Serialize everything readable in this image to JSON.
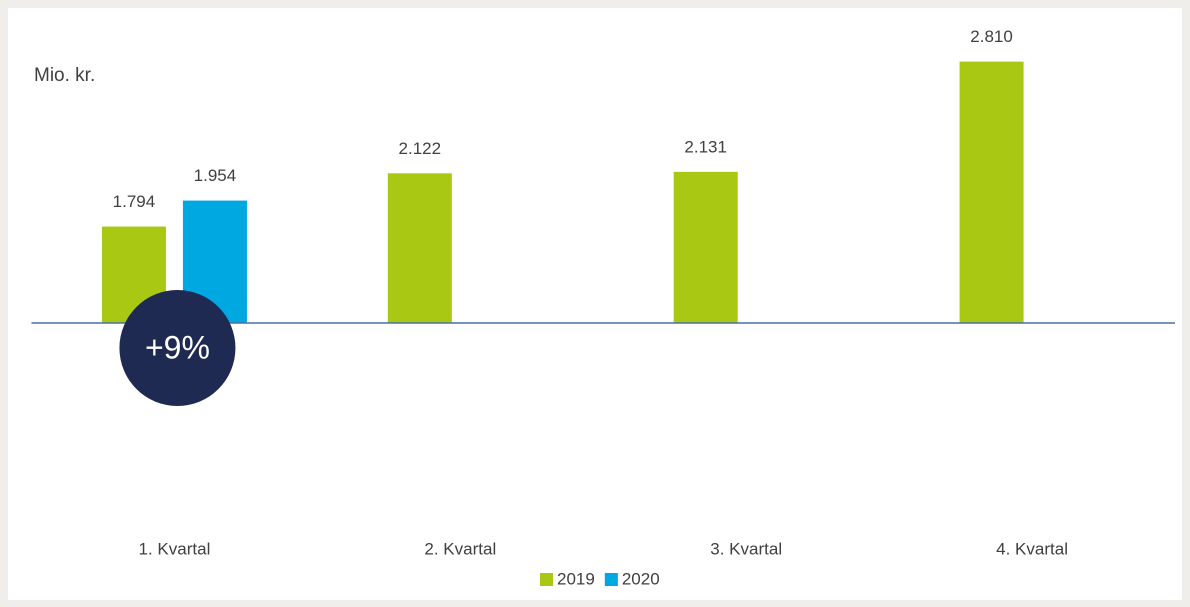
{
  "chart_data": {
    "type": "bar",
    "ylabel": "Mio. kr.",
    "categories": [
      "1. Kvartal",
      "2. Kvartal",
      "3. Kvartal",
      "4. Kvartal"
    ],
    "series": [
      {
        "name": "2019",
        "color": "#a8c813",
        "values": [
          1794,
          2122,
          2131,
          2810
        ],
        "value_labels": [
          "1.794",
          "2.122",
          "2.131",
          "2.810"
        ]
      },
      {
        "name": "2020",
        "color": "#00a8e1",
        "values": [
          1954,
          null,
          null,
          null
        ],
        "value_labels": [
          "1.954",
          null,
          null,
          null
        ]
      }
    ],
    "ylim": [
      1200,
      2900
    ],
    "annotation": "+9%",
    "legend": "bottom"
  }
}
